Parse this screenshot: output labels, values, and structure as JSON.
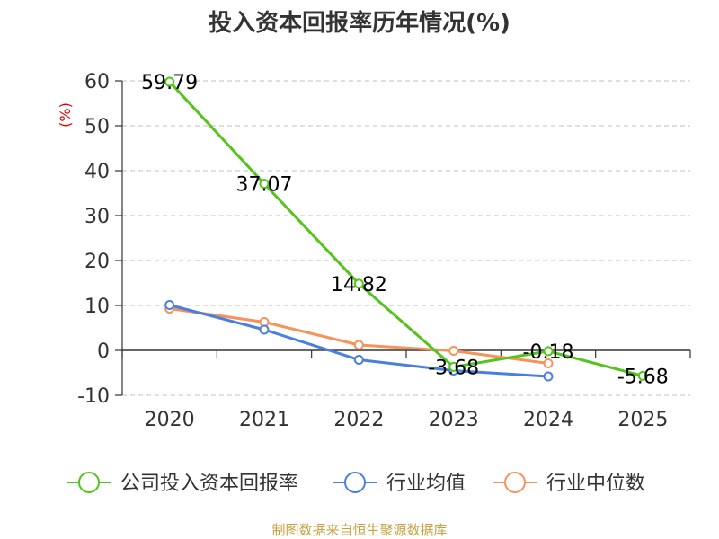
{
  "chart_data": {
    "type": "line",
    "title": "投入资本回报率历年情况(%)",
    "ylabel": "(%)",
    "xlabel": "",
    "categories": [
      "2020",
      "2021",
      "2022",
      "2023",
      "2024",
      "2025"
    ],
    "ylim": [
      -10,
      60
    ],
    "yticks": [
      "60",
      "50",
      "40",
      "30",
      "20",
      "10",
      "0",
      "-10"
    ],
    "series": [
      {
        "name": "公司投入资本回报率",
        "color": "#52c41a",
        "values": [
          59.79,
          37.07,
          14.82,
          -3.68,
          -0.18,
          -5.68
        ],
        "labels": [
          "59.79",
          "37.07",
          "14.82",
          "-3.68",
          "-0.18",
          "-5.68"
        ]
      },
      {
        "name": "行业均值",
        "color": "#4a7ee0",
        "values": [
          10.1,
          4.6,
          -2.1,
          -4.5,
          -5.8,
          null
        ]
      },
      {
        "name": "行业中位数",
        "color": "#f4935a",
        "values": [
          9.3,
          6.3,
          1.2,
          -0.1,
          -2.9,
          null
        ]
      }
    ],
    "grid": true,
    "legend": "bottom"
  },
  "source": "制图数据来自恒生聚源数据库"
}
